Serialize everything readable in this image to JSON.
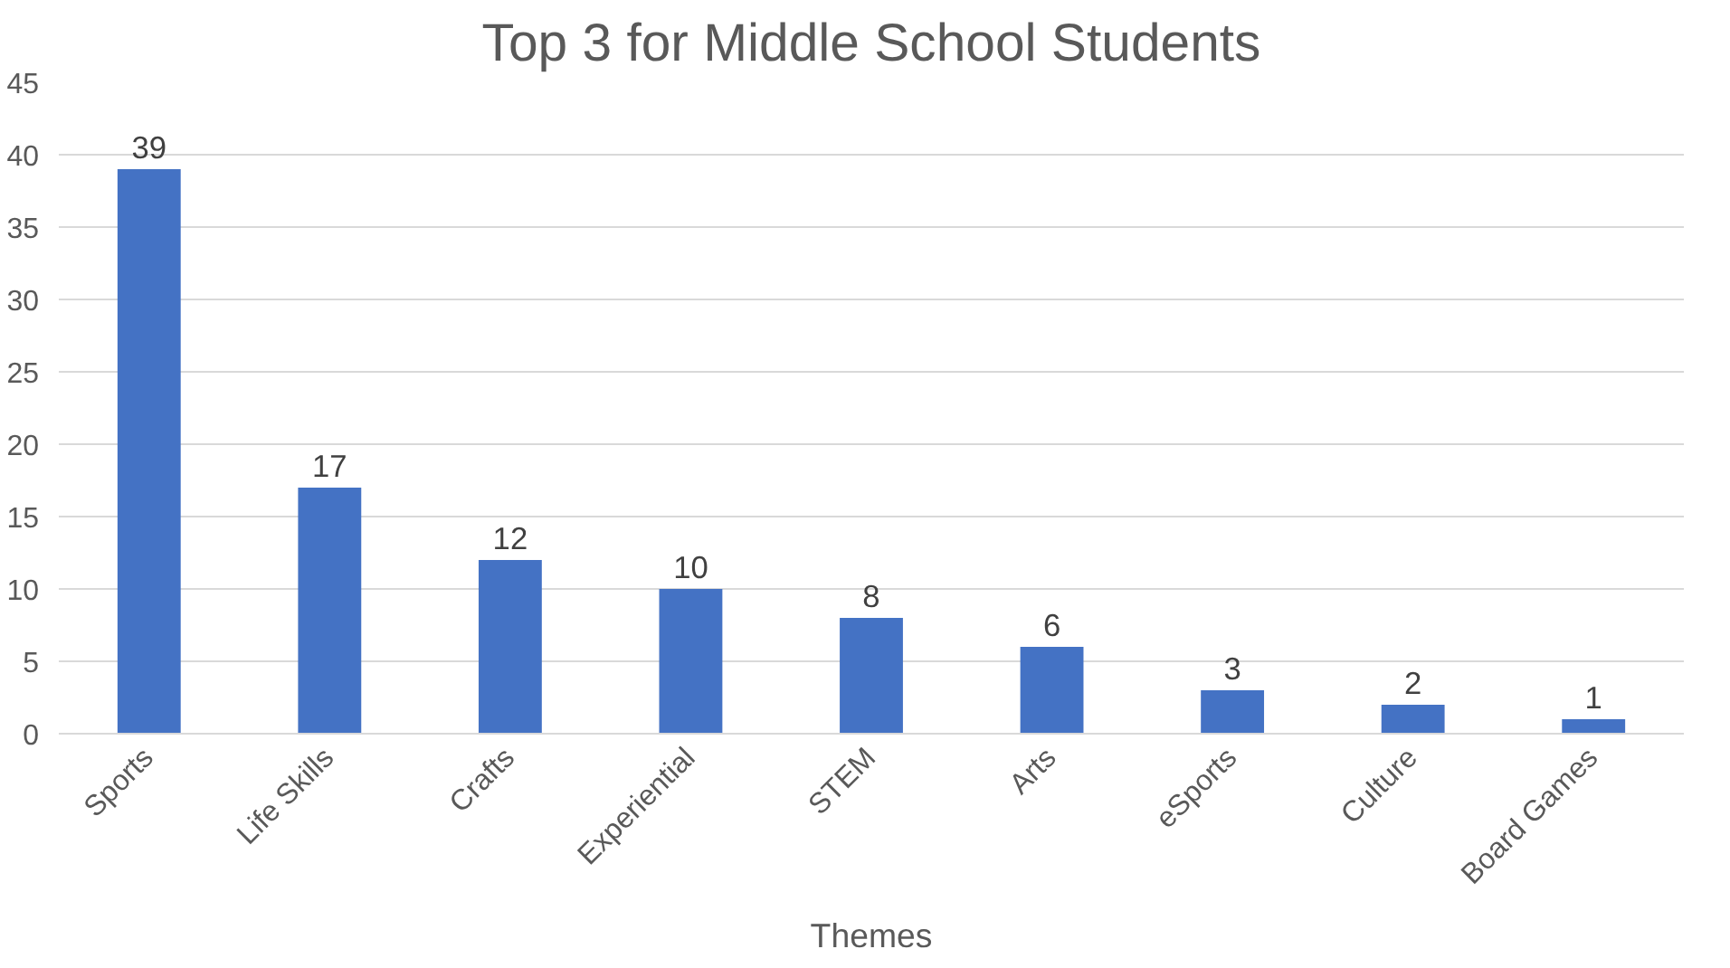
{
  "chart_data": {
    "type": "bar",
    "title": "Top 3 for Middle School Students",
    "xlabel": "Themes",
    "categories": [
      "Sports",
      "Life Skills",
      "Crafts",
      "Experiential",
      "STEM",
      "Arts",
      "eSports",
      "Culture",
      "Board Games"
    ],
    "values": [
      39,
      17,
      12,
      10,
      8,
      6,
      3,
      2,
      1
    ],
    "color": "#4472c4",
    "ylim": [
      0,
      45
    ],
    "yticks": [
      0,
      5,
      10,
      15,
      20,
      25,
      30,
      35,
      40,
      45
    ],
    "grid": "y",
    "data_labels": true
  }
}
